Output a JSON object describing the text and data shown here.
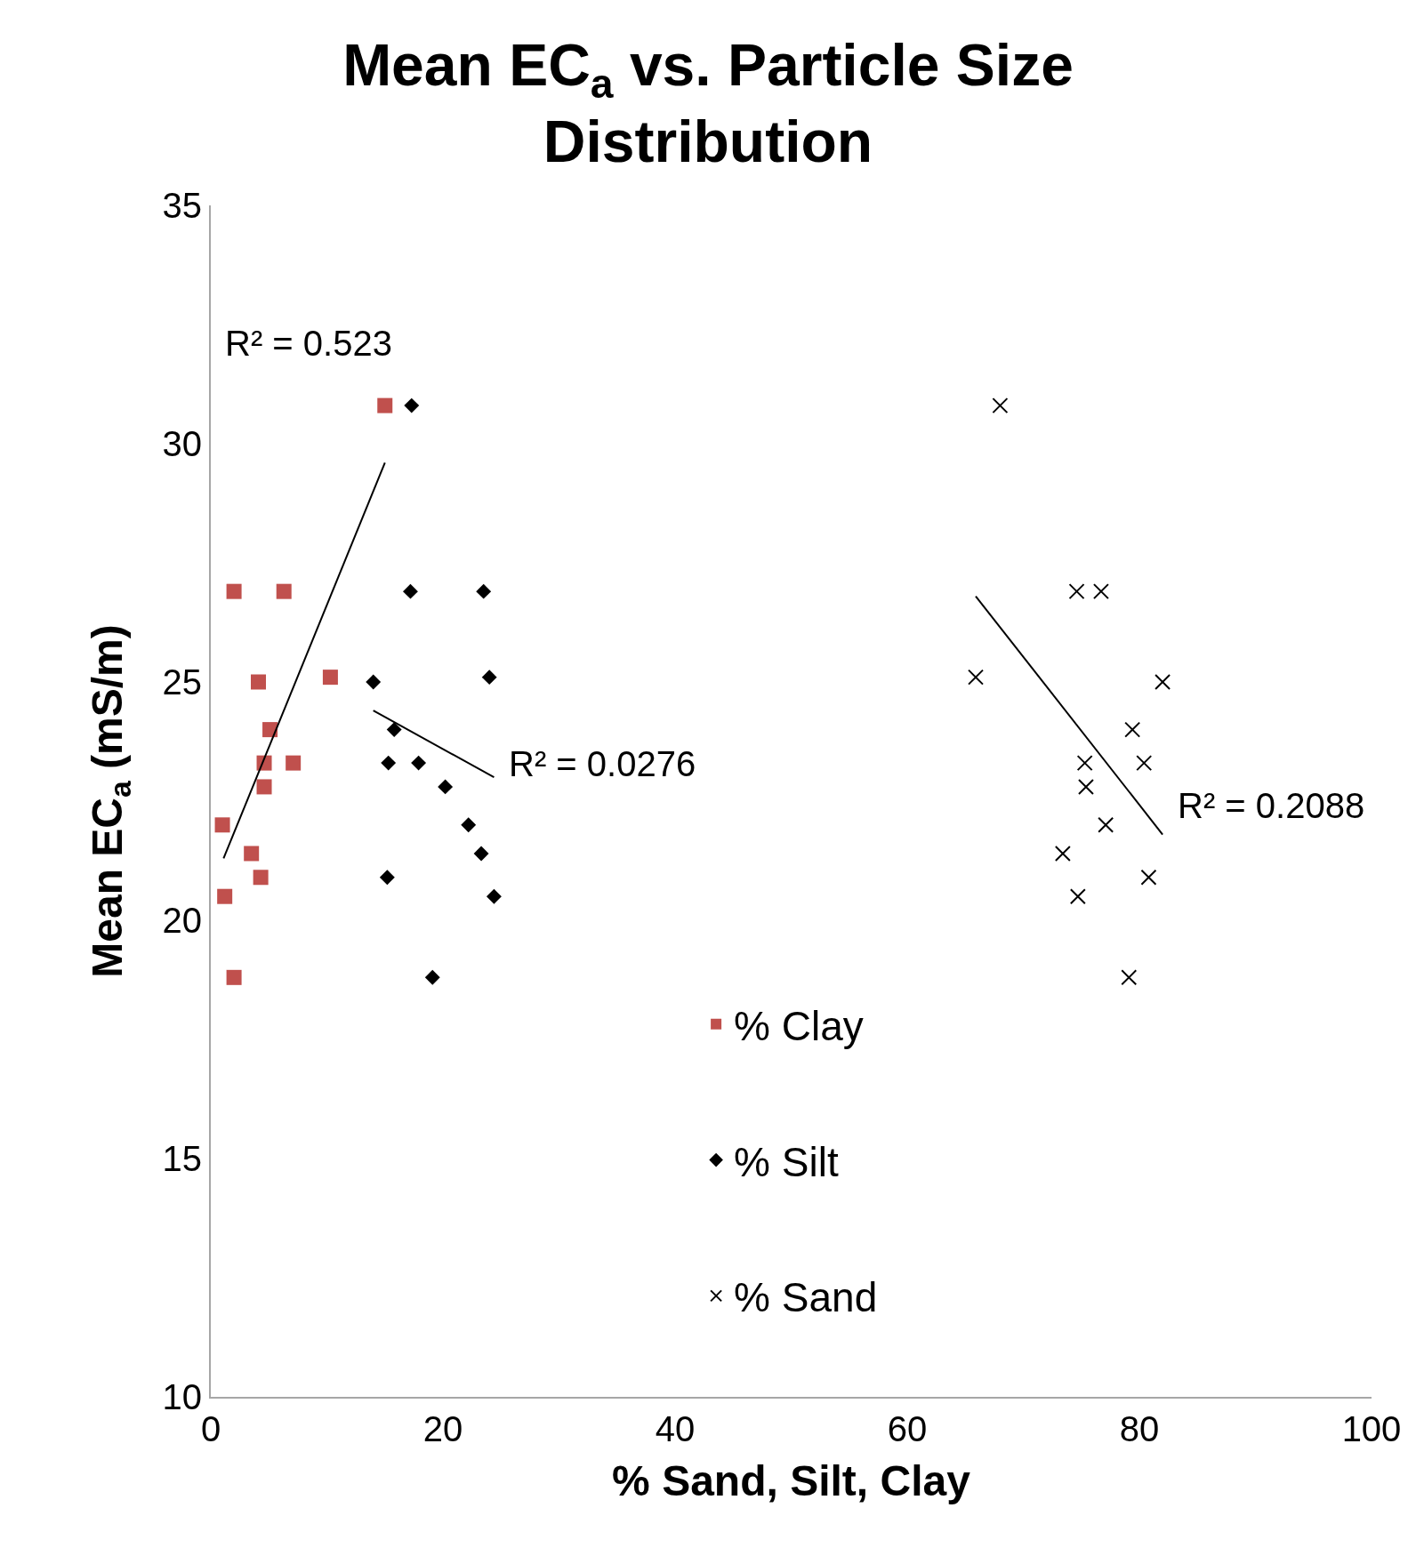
{
  "chart_data": {
    "type": "scatter",
    "title": "Mean EC$_{a}$ vs. Particle Size Distribution",
    "xlabel": "% Sand, Silt, Clay",
    "ylabel": "Mean EC$_{a}$ (mS/m)",
    "xlim": [
      0,
      100
    ],
    "ylim": [
      10,
      35
    ],
    "xticks": [
      0,
      20,
      40,
      60,
      80,
      100
    ],
    "yticks": [
      10,
      15,
      20,
      25,
      30,
      35
    ],
    "grid": false,
    "legend": "bottom",
    "series": [
      {
        "name": "% Clay",
        "color": "#c0504d",
        "marker": "square",
        "x": [
          15.0,
          2.0,
          6.3,
          4.1,
          10.3,
          5.1,
          4.6,
          7.1,
          4.6,
          1.0,
          3.5,
          4.3,
          1.2,
          2.0
        ],
        "values": [
          30.8,
          26.9,
          26.9,
          25.0,
          25.1,
          24.0,
          23.3,
          23.3,
          22.8,
          22.0,
          21.4,
          20.9,
          20.5,
          18.8
        ]
      },
      {
        "name": "% Silt",
        "color": "#000000",
        "marker": "diamond",
        "x": [
          17.3,
          17.2,
          23.5,
          14.0,
          24.0,
          15.8,
          15.3,
          17.9,
          20.2,
          22.2,
          23.3,
          15.2,
          24.4,
          19.1
        ],
        "values": [
          30.8,
          26.9,
          26.9,
          25.0,
          25.1,
          24.0,
          23.3,
          23.3,
          22.8,
          22.0,
          21.4,
          20.9,
          20.5,
          18.8
        ]
      },
      {
        "name": "% Sand",
        "color": "#000000",
        "marker": "cross",
        "x": [
          68.0,
          74.6,
          76.7,
          65.9,
          82.0,
          79.4,
          75.3,
          80.4,
          75.4,
          77.1,
          73.4,
          80.8,
          74.7,
          79.1
        ],
        "values": [
          30.8,
          26.9,
          26.9,
          25.1,
          25.0,
          24.0,
          23.3,
          23.3,
          22.8,
          22.0,
          21.4,
          20.9,
          20.5,
          18.8
        ]
      },
      {
        "type": "line",
        "color": "#000000",
        "marker": "none",
        "x": [
          1.1,
          15.0
        ],
        "values": [
          21.3,
          29.6
        ]
      },
      {
        "type": "line",
        "color": "#000000",
        "marker": "none",
        "x": [
          14.0,
          24.4
        ],
        "values": [
          24.4,
          23.0
        ]
      },
      {
        "type": "line",
        "color": "#000000",
        "marker": "none",
        "x": [
          65.9,
          82.0
        ],
        "values": [
          26.8,
          21.8
        ]
      }
    ],
    "annotations": [
      "R² = 0.523",
      "R² = 0.0276",
      "R² = 0.2088"
    ]
  }
}
